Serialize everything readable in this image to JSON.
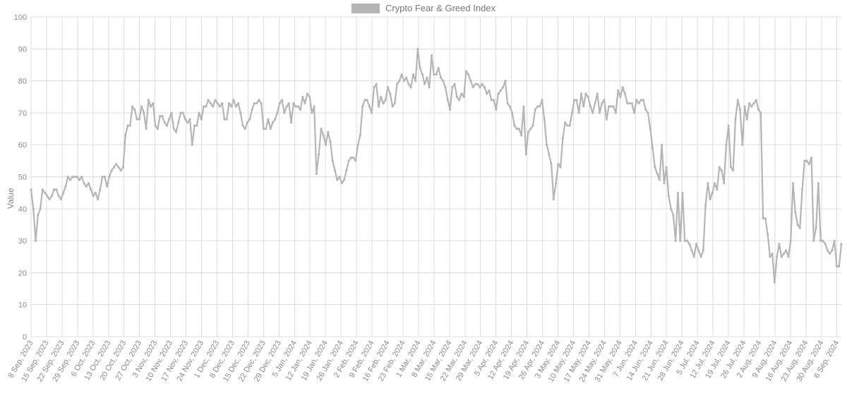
{
  "chart": {
    "type": "line",
    "legend_label": "Crypto Fear & Greed Index",
    "y_axis_label": "Value",
    "ylim": [
      0,
      100
    ],
    "ytick_step": 10,
    "background_color": "#ffffff",
    "grid_color": "#dcdcdc",
    "line_color": "#b5b5b5",
    "line_width": 2.2,
    "marker_color": "#b5b5b5",
    "marker_radius": 1.6,
    "axis_text_color": "#8a8a8a",
    "title_fontsize": 13,
    "axis_fontsize": 11,
    "x_tick_labels": [
      "8 Sep, 2023",
      "15 Sep, 2023",
      "22 Sep, 2023",
      "29 Sep, 2023",
      "6 Oct, 2023",
      "13 Oct, 2023",
      "20 Oct, 2023",
      "27 Oct, 2023",
      "3 Nov, 2023",
      "10 Nov, 2023",
      "17 Nov, 2023",
      "24 Nov, 2023",
      "1 Dec, 2023",
      "8 Dec, 2023",
      "15 Dec, 2023",
      "22 Dec, 2023",
      "29 Dec, 2023",
      "5 Jan, 2024",
      "12 Jan, 2024",
      "19 Jan, 2024",
      "26 Jan, 2024",
      "2 Feb, 2024",
      "9 Feb, 2024",
      "16 Feb, 2024",
      "23 Feb, 2024",
      "1 Mar, 2024",
      "8 Mar, 2024",
      "15 Mar, 2024",
      "22 Mar, 2024",
      "29 Mar, 2024",
      "5 Apr, 2024",
      "12 Apr, 2024",
      "19 Apr, 2024",
      "26 Apr, 2024",
      "3 May, 2024",
      "10 May, 2024",
      "17 May, 2024",
      "24 May, 2024",
      "31 May, 2024",
      "7 Jun, 2024",
      "14 Jun, 2024",
      "21 Jun, 2024",
      "28 Jun, 2024",
      "5 Jul, 2024",
      "12 Jul, 2024",
      "19 Jul, 2024",
      "26 Jul, 2024",
      "2 Aug, 2024",
      "9 Aug, 2024",
      "16 Aug, 2024",
      "23 Aug, 2024",
      "30 Aug, 2024",
      "6 Sep, 2024"
    ],
    "x_tick_positions_days": [
      0,
      7,
      14,
      21,
      28,
      35,
      42,
      49,
      56,
      63,
      70,
      77,
      84,
      91,
      98,
      105,
      112,
      119,
      126,
      133,
      140,
      147,
      154,
      161,
      168,
      175,
      182,
      189,
      196,
      203,
      210,
      217,
      224,
      231,
      238,
      245,
      252,
      259,
      266,
      273,
      280,
      287,
      294,
      301,
      308,
      315,
      322,
      329,
      336,
      343,
      350,
      357,
      364
    ],
    "x_domain_days": [
      0,
      366
    ],
    "values": [
      46,
      40,
      30,
      38,
      40,
      46,
      45,
      44,
      43,
      44,
      46,
      46,
      44,
      43,
      45,
      47,
      50,
      49,
      50,
      50,
      50,
      49,
      50,
      48,
      47,
      48,
      46,
      44,
      45,
      43,
      46,
      50,
      50,
      47,
      50,
      52,
      53,
      54,
      53,
      52,
      53,
      63,
      66,
      66,
      72,
      71,
      68,
      68,
      72,
      70,
      65,
      74,
      72,
      73,
      66,
      65,
      69,
      69,
      67,
      66,
      68,
      70,
      65,
      64,
      67,
      70,
      70,
      68,
      67,
      68,
      60,
      66,
      66,
      70,
      68,
      72,
      72,
      74,
      73,
      72,
      74,
      73,
      72,
      73,
      68,
      68,
      73,
      72,
      74,
      72,
      73,
      70,
      66,
      65,
      67,
      68,
      71,
      73,
      73,
      74,
      73,
      65,
      65,
      68,
      65,
      67,
      68,
      70,
      73,
      74,
      70,
      72,
      73,
      67,
      73,
      72,
      72,
      71,
      75,
      73,
      76,
      75,
      70,
      72,
      51,
      57,
      65,
      63,
      60,
      64,
      61,
      55,
      52,
      49,
      50,
      48,
      49,
      52,
      55,
      56,
      56,
      55,
      60,
      63,
      72,
      74,
      74,
      72,
      70,
      78,
      79,
      72,
      75,
      73,
      74,
      78,
      76,
      72,
      73,
      79,
      80,
      82,
      80,
      81,
      79,
      78,
      82,
      80,
      90,
      84,
      82,
      79,
      81,
      78,
      88,
      82,
      82,
      84,
      81,
      80,
      78,
      74,
      71,
      78,
      79,
      75,
      74,
      76,
      75,
      83,
      82,
      80,
      78,
      79,
      79,
      78,
      79,
      78,
      76,
      77,
      74,
      74,
      71,
      76,
      77,
      78,
      80,
      73,
      72,
      70,
      66,
      65,
      65,
      63,
      72,
      57,
      64,
      65,
      66,
      71,
      72,
      72,
      74,
      68,
      60,
      57,
      54,
      43,
      48,
      54,
      53,
      62,
      67,
      66,
      66,
      70,
      74,
      74,
      70,
      76,
      72,
      76,
      75,
      72,
      70,
      73,
      76,
      70,
      73,
      74,
      68,
      72,
      72,
      72,
      70,
      77,
      75,
      78,
      76,
      73,
      73,
      73,
      70,
      74,
      73,
      74,
      74,
      71,
      70,
      65,
      59,
      53,
      51,
      49,
      60,
      48,
      53,
      44,
      40,
      38,
      30,
      45,
      30,
      45,
      30,
      30,
      29,
      27,
      25,
      29,
      27,
      25,
      27,
      41,
      48,
      43,
      45,
      48,
      46,
      53,
      52,
      48,
      60,
      66,
      53,
      52,
      68,
      74,
      71,
      60,
      72,
      68,
      73,
      72,
      73,
      74,
      71,
      70,
      37,
      37,
      32,
      25,
      26,
      17,
      25,
      29,
      25,
      26,
      27,
      25,
      30,
      48,
      39,
      35,
      34,
      46,
      55,
      55,
      54,
      56,
      30,
      34,
      48,
      30,
      30,
      29,
      27,
      26,
      27,
      30,
      22,
      22,
      29
    ]
  }
}
